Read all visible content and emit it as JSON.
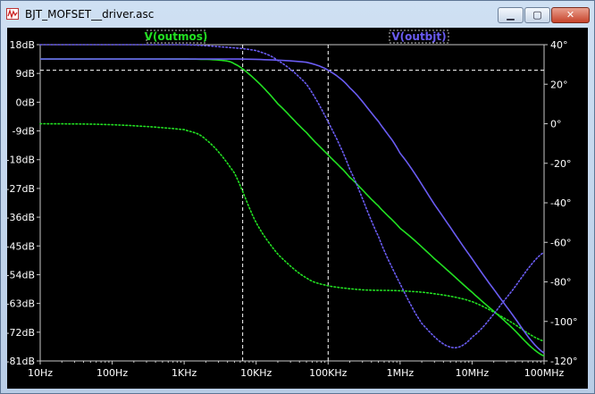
{
  "window": {
    "title": "BJT_MOFSET__driver.asc",
    "icon": "waveform-icon",
    "buttons": {
      "minimize": "minimize-icon",
      "maximize": "maximize-icon",
      "close": "close-icon"
    }
  },
  "colors": {
    "outmos": "#22e022",
    "outbjt": "#6a5cf2",
    "grid": "#ffffff",
    "axis": "#c8c8c8",
    "background": "#000000"
  },
  "chart_data": {
    "type": "line",
    "title": "",
    "x_scale": "log",
    "xlim": [
      10,
      100000000
    ],
    "ylim_left": [
      -81,
      18
    ],
    "ylim_right": [
      -120,
      40
    ],
    "x_ticks": [
      {
        "v": 10,
        "label": "10Hz"
      },
      {
        "v": 100,
        "label": "100Hz"
      },
      {
        "v": 1000,
        "label": "1KHz"
      },
      {
        "v": 10000,
        "label": "10KHz"
      },
      {
        "v": 100000,
        "label": "100KHz"
      },
      {
        "v": 1000000,
        "label": "1MHz"
      },
      {
        "v": 10000000,
        "label": "10MHz"
      },
      {
        "v": 100000000,
        "label": "100MHz"
      }
    ],
    "y_left_ticks": [
      {
        "v": 18,
        "label": "18dB"
      },
      {
        "v": 9,
        "label": "9dB"
      },
      {
        "v": 0,
        "label": "0dB"
      },
      {
        "v": -9,
        "label": "-9dB"
      },
      {
        "v": -18,
        "label": "-18dB"
      },
      {
        "v": -27,
        "label": "-27dB"
      },
      {
        "v": -36,
        "label": "-36dB"
      },
      {
        "v": -45,
        "label": "-45dB"
      },
      {
        "v": -54,
        "label": "-54dB"
      },
      {
        "v": -63,
        "label": "-63dB"
      },
      {
        "v": -72,
        "label": "-72dB"
      },
      {
        "v": -81,
        "label": "-81dB"
      }
    ],
    "y_right_ticks": [
      {
        "v": 40,
        "label": "40°"
      },
      {
        "v": 20,
        "label": "20°"
      },
      {
        "v": 0,
        "label": "0°"
      },
      {
        "v": -20,
        "label": "-20°"
      },
      {
        "v": -40,
        "label": "-40°"
      },
      {
        "v": -60,
        "label": "-60°"
      },
      {
        "v": -80,
        "label": "-80°"
      },
      {
        "v": -100,
        "label": "-100°"
      },
      {
        "v": -120,
        "label": "-120°"
      }
    ],
    "cursors": {
      "x": [
        6500,
        100000
      ],
      "y_db": [
        10
      ]
    },
    "series": [
      {
        "name": "V(outmos)",
        "kind": "magnitude",
        "x": [
          10,
          1000,
          3000,
          5000,
          10000,
          20000,
          50000,
          100000,
          200000,
          500000,
          1000000,
          3000000,
          10000000,
          30000000,
          100000000
        ],
        "y": [
          13.5,
          13.5,
          13.2,
          12,
          6.8,
          -0.5,
          -9.5,
          -16.5,
          -23.5,
          -32.5,
          -39.5,
          -49,
          -59.5,
          -69,
          -79.5
        ]
      },
      {
        "name": "V(outmos)",
        "kind": "phase",
        "x": [
          10,
          100,
          1000,
          2000,
          5000,
          10000,
          20000,
          50000,
          100000,
          300000,
          1000000,
          3000000,
          10000000,
          30000000,
          100000000
        ],
        "y": [
          0,
          -0.5,
          -3,
          -8,
          -25,
          -50,
          -66,
          -78,
          -82,
          -84,
          -84.5,
          -86,
          -90,
          -99,
          -110
        ]
      },
      {
        "name": "V(outbjt)",
        "kind": "magnitude",
        "x": [
          10,
          1000,
          10000,
          50000,
          100000,
          200000,
          500000,
          1000000,
          3000000,
          10000000,
          30000000,
          100000000
        ],
        "y": [
          13.5,
          13.5,
          13.4,
          12.5,
          10,
          4.5,
          -6,
          -16,
          -32,
          -49,
          -64,
          -78.5
        ]
      },
      {
        "name": "V(outbjt)",
        "kind": "phase",
        "x": [
          10,
          1000,
          3000,
          10000,
          20000,
          50000,
          100000,
          200000,
          500000,
          1000000,
          2000000,
          5000000,
          10000000,
          30000000,
          100000000
        ],
        "y": [
          40,
          40,
          39,
          37,
          32,
          20,
          1,
          -23,
          -57,
          -81,
          -101,
          -113,
          -108,
          -88,
          -65
        ]
      }
    ]
  }
}
